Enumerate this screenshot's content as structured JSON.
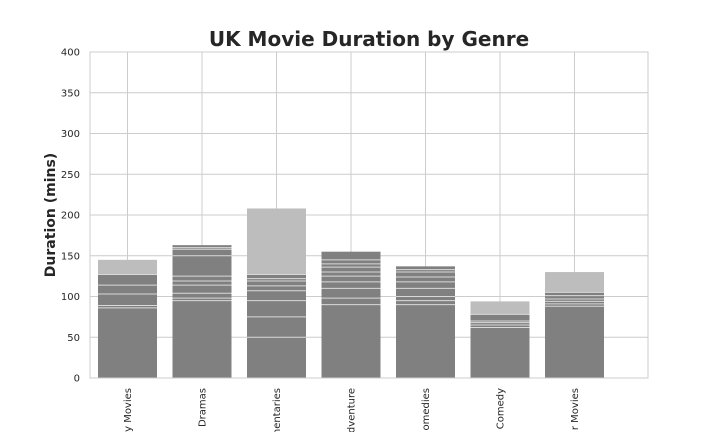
{
  "chart_data": {
    "type": "bar",
    "title": "UK Movie Duration by Genre",
    "xlabel": "",
    "ylabel": "Duration (mins)",
    "ylim": [
      0,
      400
    ],
    "yticks": [
      0,
      50,
      100,
      150,
      200,
      250,
      300,
      350,
      400
    ],
    "grid": true,
    "categories": [
      "y Movies",
      "Dramas",
      "mentaries",
      "dventure",
      "omedies",
      "Comedy",
      "r Movies"
    ],
    "values": [
      145,
      163,
      208,
      155,
      137,
      94,
      130
    ],
    "stacked_segment_tops": [
      [
        86,
        89,
        103,
        114,
        127,
        145
      ],
      [
        95,
        98,
        104,
        114,
        119,
        125,
        150,
        158,
        160,
        163
      ],
      [
        50,
        75,
        95,
        107,
        113,
        119,
        122,
        127,
        208
      ],
      [
        90,
        98,
        110,
        118,
        125,
        130,
        136,
        140,
        145,
        155
      ],
      [
        90,
        95,
        100,
        110,
        118,
        124,
        130,
        133,
        137
      ],
      [
        62,
        65,
        68,
        70,
        78,
        94
      ],
      [
        88,
        91,
        94,
        97,
        101,
        105,
        130
      ]
    ],
    "bar_color": "#808080",
    "top_segment_color": "#bdbdbd",
    "separator_color": "#d9d9d9"
  }
}
